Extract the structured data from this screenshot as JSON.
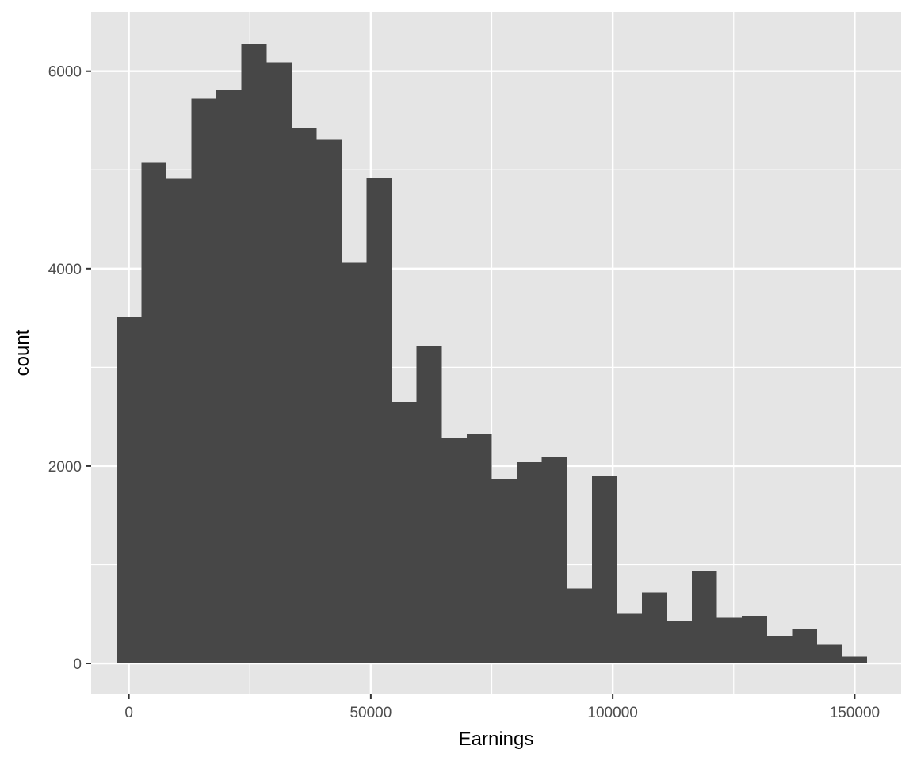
{
  "chart_data": {
    "type": "bar",
    "title": "",
    "xlabel": "Earnings",
    "ylabel": "count",
    "xlim": [
      -7800,
      159600
    ],
    "ylim": [
      -305,
      6600
    ],
    "grid": true,
    "x_ticks": [
      0,
      50000,
      100000,
      150000
    ],
    "x_tick_labels": [
      "0",
      "50000",
      "100000",
      "150000"
    ],
    "y_ticks": [
      0,
      2000,
      4000,
      6000
    ],
    "y_tick_labels": [
      "0",
      "2000",
      "4000",
      "6000"
    ],
    "bin_width": 5172,
    "bin_start": -2586,
    "counts": [
      3510,
      5080,
      4910,
      5720,
      5810,
      6280,
      6090,
      5420,
      5310,
      4060,
      4920,
      2650,
      3210,
      2280,
      2320,
      1870,
      2040,
      2090,
      760,
      1900,
      510,
      720,
      430,
      940,
      470,
      480,
      280,
      350,
      190,
      70
    ],
    "colors": {
      "bar": "#474747",
      "panel": "#e5e5e5",
      "grid": "#ffffff",
      "tick": "#333333"
    }
  }
}
